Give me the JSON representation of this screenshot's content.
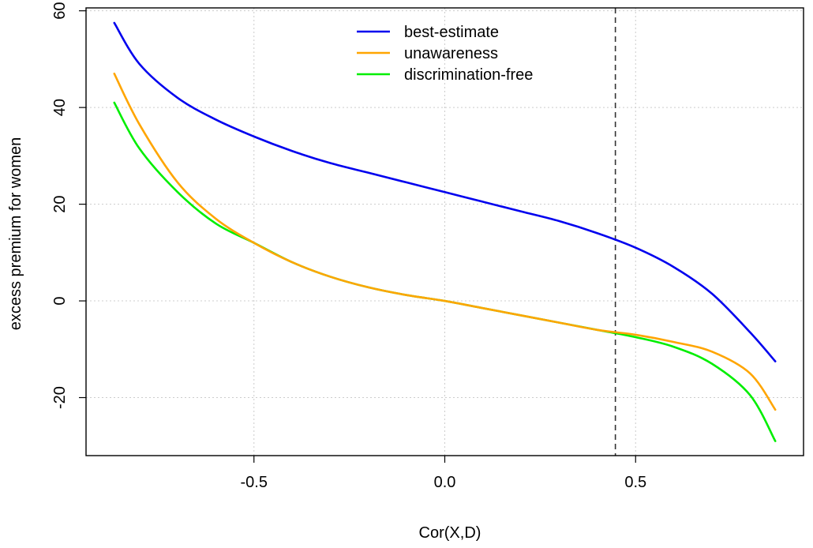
{
  "chart_data": {
    "type": "line",
    "title": "",
    "xlabel": "Cor(X,D)",
    "ylabel": "excess premium for women",
    "xlim": [
      -0.94,
      0.94
    ],
    "ylim": [
      -32,
      60.6
    ],
    "x_ticks": [
      -0.5,
      0.0,
      0.5
    ],
    "x_tick_labels": [
      "-0.5",
      "0.0",
      "0.5"
    ],
    "y_ticks": [
      -20,
      0,
      20,
      40,
      60
    ],
    "y_tick_labels": [
      "-20",
      "0",
      "20",
      "40",
      "60"
    ],
    "grid": true,
    "legend_position": "top-center",
    "vertical_reference_line": {
      "x": 0.447,
      "style": "dashed",
      "color": "#333333"
    },
    "x": [
      -0.866,
      -0.8,
      -0.7,
      -0.6,
      -0.5,
      -0.4,
      -0.3,
      -0.2,
      -0.1,
      0.0,
      0.1,
      0.2,
      0.3,
      0.4,
      0.5,
      0.6,
      0.7,
      0.8,
      0.866
    ],
    "series": [
      {
        "name": "best-estimate",
        "color": "#0000ee",
        "values": [
          57.5,
          49.0,
          42.0,
          37.5,
          34.0,
          31.0,
          28.5,
          26.5,
          24.5,
          22.5,
          20.5,
          18.5,
          16.5,
          14.0,
          11.0,
          7.0,
          1.5,
          -6.5,
          -12.5
        ]
      },
      {
        "name": "unawareness",
        "color": "#ffa500",
        "values": [
          47.0,
          36.5,
          24.5,
          17.0,
          12.0,
          8.0,
          5.0,
          2.8,
          1.2,
          0.0,
          -1.5,
          -3.0,
          -4.5,
          -6.0,
          -7.0,
          -8.5,
          -10.5,
          -15.0,
          -22.5
        ]
      },
      {
        "name": "discrimination-free",
        "color": "#00ee00",
        "values": [
          41.0,
          31.5,
          22.5,
          16.0,
          12.0,
          8.0,
          5.0,
          2.8,
          1.2,
          0.0,
          -1.5,
          -3.0,
          -4.5,
          -6.0,
          -7.5,
          -9.5,
          -13.0,
          -19.5,
          -29.0
        ]
      }
    ]
  }
}
